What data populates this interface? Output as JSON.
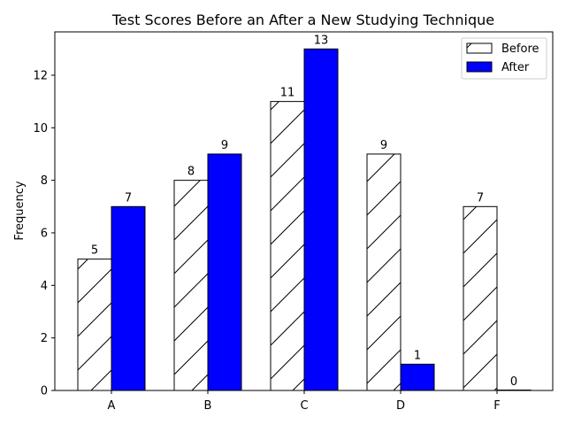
{
  "chart_data": {
    "type": "bar",
    "title": "Test Scores Before an After a New Studying Technique",
    "xlabel": "",
    "ylabel": "Frequency",
    "categories": [
      "A",
      "B",
      "C",
      "D",
      "F"
    ],
    "series": [
      {
        "name": "Before",
        "values": [
          5,
          8,
          11,
          9,
          7
        ],
        "color": "#ffffff",
        "hatch": "diagonal"
      },
      {
        "name": "After",
        "values": [
          7,
          9,
          13,
          1,
          0
        ],
        "color": "#0000ff"
      }
    ],
    "ylim": [
      0,
      13.65
    ],
    "yticks": [
      0,
      2,
      4,
      6,
      8,
      10,
      12
    ],
    "grid": false,
    "legend_position": "top-right"
  }
}
